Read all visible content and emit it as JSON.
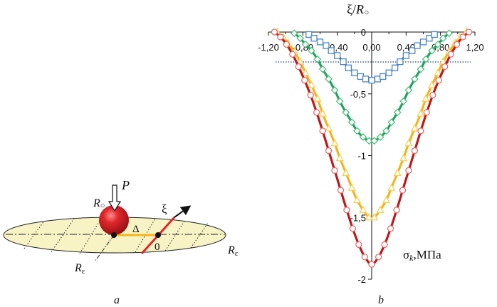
{
  "panel_a": {
    "force_label": "P",
    "ball_label": "R",
    "ball_label_sub": "○",
    "offset_label": "Δ",
    "zero_label": "0",
    "axis_label": "ξ",
    "ellipse_label_right": "R",
    "ellipse_label_right_sub": "ε",
    "ellipse_label_bottom": "R",
    "ellipse_label_bottom_sub": "ε",
    "caption": "a",
    "colors": {
      "ellipse_fill": "#f7f3c4",
      "ball": "#e0262b",
      "axis": "#e0262b",
      "offset": "#f2b51c"
    }
  },
  "panel_b": {
    "caption": "b",
    "xaxis_title_main": "ξ/",
    "xaxis_title_italic": "R",
    "xaxis_title_sub": "○",
    "ylabel_main": "σ",
    "ylabel_sub": "k",
    "ylabel_unit": ",МПа"
  },
  "chart_data": {
    "type": "line",
    "x_ticks": [
      "-1,20",
      "-0,80",
      "-0,40",
      "0,00",
      "0,40",
      "0,80",
      "1,20"
    ],
    "x_tick_values": [
      -1.2,
      -0.8,
      -0.4,
      0.0,
      0.4,
      0.8,
      1.2
    ],
    "y_ticks": [
      "0",
      "-0,5",
      "-1",
      "-1,5",
      "-2"
    ],
    "y_tick_values": [
      0,
      -0.5,
      -1,
      -1.5,
      -2
    ],
    "xlim": [
      -1.2,
      1.2
    ],
    "ylim": [
      -2,
      0
    ],
    "x_axis_position": "top",
    "grid": false,
    "series": [
      {
        "marker": "square",
        "color": "#1f4e9c",
        "marker_color": "#4a86c8",
        "x": [
          -0.73,
          -0.67,
          -0.6,
          -0.53,
          -0.47,
          -0.4,
          -0.33,
          -0.27,
          -0.2,
          -0.13,
          -0.07,
          0.0,
          0.07,
          0.13,
          0.2,
          0.27,
          0.33,
          0.4,
          0.47,
          0.53,
          0.6,
          0.67,
          0.73
        ],
        "y": [
          -0.02,
          -0.05,
          -0.08,
          -0.11,
          -0.15,
          -0.19,
          -0.24,
          -0.29,
          -0.33,
          -0.36,
          -0.38,
          -0.39,
          -0.38,
          -0.36,
          -0.33,
          -0.29,
          -0.24,
          -0.19,
          -0.15,
          -0.11,
          -0.08,
          -0.05,
          -0.02
        ]
      },
      {
        "marker": "diamond",
        "color": "#1ea35a",
        "marker_color": "#4cc07a",
        "x": [
          -0.9,
          -0.83,
          -0.77,
          -0.7,
          -0.63,
          -0.57,
          -0.5,
          -0.43,
          -0.37,
          -0.3,
          -0.23,
          -0.17,
          -0.1,
          -0.03,
          0.03,
          0.1,
          0.17,
          0.23,
          0.3,
          0.37,
          0.43,
          0.5,
          0.57,
          0.63,
          0.7,
          0.77,
          0.83,
          0.9
        ],
        "y": [
          -0.01,
          -0.05,
          -0.1,
          -0.15,
          -0.22,
          -0.3,
          -0.38,
          -0.47,
          -0.56,
          -0.65,
          -0.73,
          -0.8,
          -0.85,
          -0.88,
          -0.88,
          -0.85,
          -0.8,
          -0.73,
          -0.65,
          -0.56,
          -0.47,
          -0.38,
          -0.3,
          -0.22,
          -0.15,
          -0.1,
          -0.05,
          -0.01
        ]
      },
      {
        "marker": "triangle",
        "color": "#f2b51c",
        "marker_color": "#f8cf52",
        "x": [
          -1.1,
          -1.03,
          -0.97,
          -0.9,
          -0.83,
          -0.77,
          -0.7,
          -0.63,
          -0.57,
          -0.5,
          -0.43,
          -0.37,
          -0.3,
          -0.23,
          -0.17,
          -0.1,
          -0.03,
          0.03,
          0.1,
          0.17,
          0.23,
          0.3,
          0.37,
          0.43,
          0.5,
          0.57,
          0.63,
          0.7,
          0.77,
          0.83,
          0.9,
          0.97,
          1.03,
          1.1
        ],
        "y": [
          0.0,
          -0.04,
          -0.09,
          -0.16,
          -0.24,
          -0.33,
          -0.43,
          -0.54,
          -0.66,
          -0.78,
          -0.9,
          -1.02,
          -1.14,
          -1.26,
          -1.36,
          -1.44,
          -1.5,
          -1.5,
          -1.44,
          -1.36,
          -1.26,
          -1.14,
          -1.02,
          -0.9,
          -0.78,
          -0.66,
          -0.54,
          -0.43,
          -0.33,
          -0.24,
          -0.16,
          -0.09,
          -0.04,
          0.0
        ]
      },
      {
        "marker": "circle",
        "color": "#c01818",
        "marker_color": "#e86a6a",
        "x": [
          -1.13,
          -1.06,
          -0.99,
          -0.92,
          -0.85,
          -0.78,
          -0.71,
          -0.64,
          -0.57,
          -0.5,
          -0.43,
          -0.36,
          -0.29,
          -0.22,
          -0.15,
          -0.08,
          0.0,
          0.08,
          0.15,
          0.22,
          0.29,
          0.36,
          0.43,
          0.5,
          0.57,
          0.64,
          0.71,
          0.78,
          0.85,
          0.92,
          0.99,
          1.06,
          1.13
        ],
        "y": [
          0.0,
          -0.04,
          -0.1,
          -0.18,
          -0.28,
          -0.39,
          -0.51,
          -0.65,
          -0.8,
          -0.96,
          -1.12,
          -1.28,
          -1.44,
          -1.59,
          -1.72,
          -1.82,
          -1.88,
          -1.82,
          -1.72,
          -1.59,
          -1.44,
          -1.28,
          -1.12,
          -0.96,
          -0.8,
          -0.65,
          -0.51,
          -0.39,
          -0.28,
          -0.18,
          -0.1,
          -0.04,
          0.0
        ]
      }
    ]
  }
}
